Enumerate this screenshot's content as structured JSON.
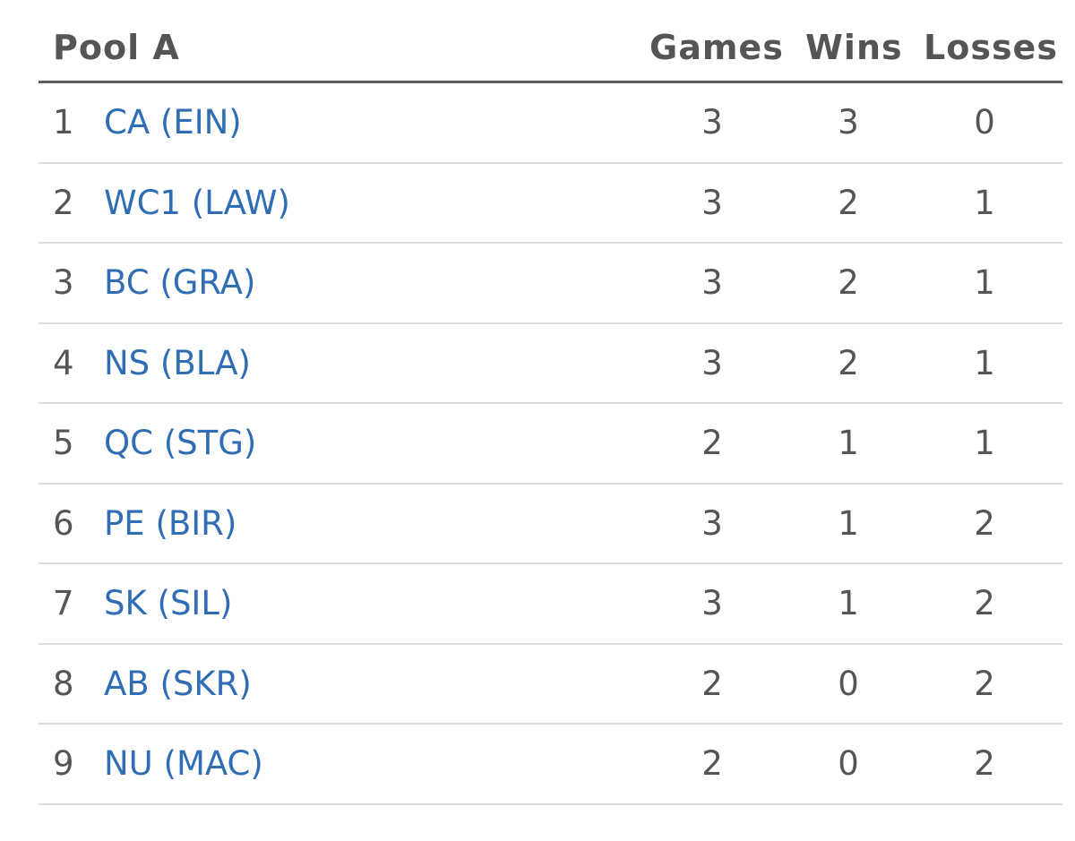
{
  "table": {
    "title": "Pool A",
    "columns": {
      "games": "Games",
      "wins": "Wins",
      "losses": "Losses"
    },
    "rows": [
      {
        "rank": "1",
        "team": "CA (EIN)",
        "games": "3",
        "wins": "3",
        "losses": "0"
      },
      {
        "rank": "2",
        "team": "WC1 (LAW)",
        "games": "3",
        "wins": "2",
        "losses": "1"
      },
      {
        "rank": "3",
        "team": "BC (GRA)",
        "games": "3",
        "wins": "2",
        "losses": "1"
      },
      {
        "rank": "4",
        "team": "NS (BLA)",
        "games": "3",
        "wins": "2",
        "losses": "1"
      },
      {
        "rank": "5",
        "team": "QC (STG)",
        "games": "2",
        "wins": "1",
        "losses": "1"
      },
      {
        "rank": "6",
        "team": "PE (BIR)",
        "games": "3",
        "wins": "1",
        "losses": "2"
      },
      {
        "rank": "7",
        "team": "SK (SIL)",
        "games": "3",
        "wins": "1",
        "losses": "2"
      },
      {
        "rank": "8",
        "team": "AB (SKR)",
        "games": "2",
        "wins": "0",
        "losses": "2"
      },
      {
        "rank": "9",
        "team": "NU (MAC)",
        "games": "2",
        "wins": "0",
        "losses": "2"
      }
    ]
  },
  "colors": {
    "link": "#2f6eb5",
    "text": "#555555",
    "header_rule": "#5e5e5e",
    "row_rule": "#dcdcdc"
  }
}
